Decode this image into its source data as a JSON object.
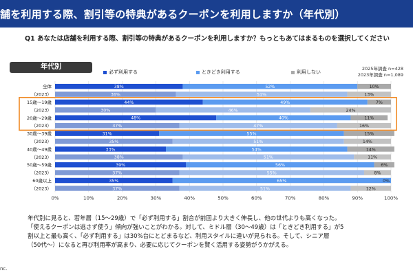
{
  "header": {
    "title": "舗を利用する際、割引等の特典があるクーポンを利用しますか（年代別）",
    "question": "Q1 あなたは店舗を利用する際、割引等の特典があるクーポンを利用しますか？もっともあてはまるものを選択してください",
    "badge": "年代別"
  },
  "meta": {
    "line1": "2025年調査 n=428",
    "line2": "2023年調査 n=1,089"
  },
  "colors": {
    "header_bg": "#1a3f8f",
    "always": "#1e4fd1",
    "sometimes": "#5b9bf0",
    "never": "#a9a9a9",
    "always_prev": "#7f9ad6",
    "sometimes_prev": "#9fbcea",
    "never_prev": "#c2c2c2",
    "highlight": "#f08a24"
  },
  "chart_data": {
    "type": "bar",
    "orientation": "horizontal-stacked-100",
    "categories": [
      "全体",
      "（2023）",
      "15歳～19歳",
      "（2023）",
      "20歳～29歳",
      "（2023）",
      "30歳～39歳",
      "（2023）",
      "40歳～49歳",
      "（2023）",
      "50歳～59歳",
      "（2023）",
      "60歳以上",
      "（2023）"
    ],
    "series": [
      {
        "name": "必ず利用する",
        "values": [
          38,
          36,
          44,
          30,
          48,
          37,
          31,
          35,
          33,
          38,
          39,
          37,
          35,
          37
        ],
        "labels": [
          "38%",
          "36%",
          "44%",
          "30%",
          "48%",
          "37%",
          "31%",
          "35%",
          "33%",
          "38%",
          "39%",
          "37%",
          "35%",
          "37%"
        ]
      },
      {
        "name": "ときどき利用する",
        "values": [
          52,
          51,
          49,
          46,
          40,
          47,
          55,
          51,
          54,
          51,
          56,
          55,
          65,
          51
        ],
        "labels": [
          "52%",
          "51%",
          "49%",
          "46%",
          "40%",
          "47%",
          "55%",
          "51%",
          "54%",
          "51%",
          "56%",
          "55%",
          "65%",
          "51%"
        ]
      },
      {
        "name": "利用しない",
        "values": [
          10,
          13,
          7,
          24,
          11,
          16,
          15,
          14,
          14,
          11,
          6,
          8,
          0,
          12
        ],
        "labels": [
          "10%",
          "13%",
          "7%",
          "24%",
          "11%",
          "16%",
          "15%",
          "14%",
          "14%",
          "11%",
          "6%",
          "8%",
          "0%",
          "12%"
        ]
      }
    ],
    "xlim": [
      0,
      100
    ],
    "xticks": [
      "0%",
      "10%",
      "20%",
      "30%",
      "40%",
      "50%",
      "60%",
      "70%",
      "80%",
      "90%",
      "100%"
    ],
    "grid": true,
    "legend_position": "top"
  },
  "summary": {
    "line1": "年代別に見ると、若年層（15～29歳）で「必ず利用する」割合が前回より大きく伸長し、他の世代よりも高くなった。",
    "line2": "「使えるクーポンは逃さず使う」傾向が強いことがわかる。対して、ミドル層（30～49歳）は「ときどき利用する」が5",
    "line3": "割以上と最も高く、「必ず利用する」は30%台にとどまるなど、利用スタイルに違いが見られる。そして、シニア層",
    "line4": "（50代～）になると再び利用率が高まり、必要に応じてクーポンを賢く活用する姿勢がうかがえる。"
  },
  "footer": {
    "text": "nc."
  }
}
